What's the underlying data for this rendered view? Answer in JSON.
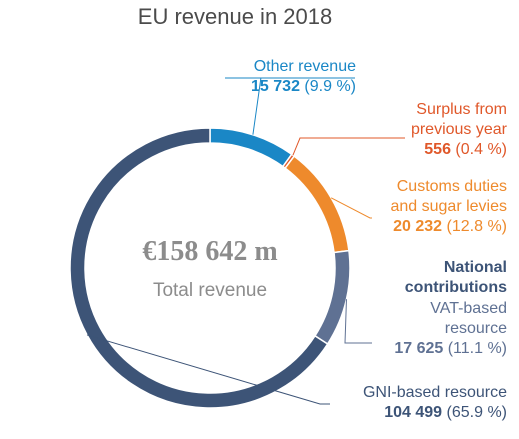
{
  "title": "EU revenue in 2018",
  "center": {
    "value": "€158 642 m",
    "label": "Total revenue"
  },
  "labels": {
    "other": {
      "name": "Other revenue",
      "amount": "15 732",
      "pct": "(9.9 %)"
    },
    "surplus": {
      "name_line1": "Surplus from",
      "name_line2": "previous year",
      "amount": "556",
      "pct": "(0.4 %)"
    },
    "customs": {
      "name_line1": "Customs duties",
      "name_line2": "and sugar levies",
      "amount": "20 232",
      "pct": "(12.8 %)"
    },
    "national": {
      "line1": "National",
      "line2": "contributions"
    },
    "vat": {
      "name_line1": "VAT-based",
      "name_line2": "resource",
      "amount": "17 625",
      "pct": "(11.1 %)"
    },
    "gni": {
      "name": "GNI-based resource",
      "amount": "104 499",
      "pct": "(65.9 %)"
    }
  },
  "chart_data": {
    "type": "pie",
    "title": "EU revenue in 2018",
    "total": 158642,
    "unit": "€ m",
    "categories": [
      "Other revenue",
      "Surplus from previous year",
      "Customs duties and sugar levies",
      "VAT-based resource",
      "GNI-based resource"
    ],
    "values": [
      15732,
      556,
      20232,
      17625,
      104499
    ],
    "percentages": [
      9.9,
      0.4,
      12.8,
      11.1,
      65.9
    ],
    "colors": [
      "#1a87c6",
      "#e0582a",
      "#ee8a2c",
      "#5f7193",
      "#3d5477"
    ],
    "legend": "labels placed right of the ring"
  }
}
